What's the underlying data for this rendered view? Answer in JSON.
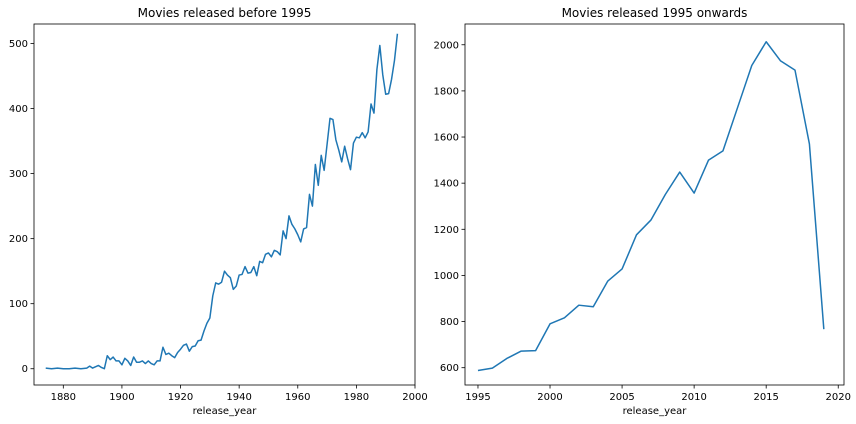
{
  "chart_data": [
    {
      "type": "line",
      "title": "Movies released before 1995",
      "xlabel": "release_year",
      "ylabel": "",
      "xlim": [
        1870,
        2000
      ],
      "ylim": [
        -25,
        530
      ],
      "xticks": [
        1880,
        1900,
        1920,
        1940,
        1960,
        1980,
        2000
      ],
      "yticks": [
        0,
        100,
        200,
        300,
        400,
        500
      ],
      "grid": false,
      "color": "#1f77b4",
      "series": [
        {
          "x": [
            1874,
            1876,
            1878,
            1880,
            1882,
            1884,
            1886,
            1888,
            1889,
            1890,
            1892,
            1893,
            1894,
            1895,
            1896,
            1897,
            1898,
            1899,
            1900,
            1901,
            1902,
            1903,
            1904,
            1905,
            1906,
            1907,
            1908,
            1909,
            1910,
            1911,
            1912,
            1913,
            1914,
            1915,
            1916,
            1917,
            1918,
            1919,
            1920,
            1921,
            1922,
            1923,
            1924,
            1925,
            1926,
            1927,
            1928,
            1929,
            1930,
            1931,
            1932,
            1933,
            1934,
            1935,
            1936,
            1937,
            1938,
            1939,
            1940,
            1941,
            1942,
            1943,
            1944,
            1945,
            1946,
            1947,
            1948,
            1949,
            1950,
            1951,
            1952,
            1953,
            1954,
            1955,
            1956,
            1957,
            1958,
            1959,
            1960,
            1961,
            1962,
            1963,
            1964,
            1965,
            1966,
            1967,
            1968,
            1969,
            1970,
            1971,
            1972,
            1973,
            1974,
            1975,
            1976,
            1977,
            1978,
            1979,
            1980,
            1981,
            1982,
            1983,
            1984,
            1985,
            1986,
            1987,
            1988,
            1989,
            1990,
            1991,
            1992,
            1993,
            1994
          ],
          "y": [
            1,
            0,
            1,
            0,
            0,
            1,
            0,
            1,
            4,
            1,
            5,
            2,
            0,
            20,
            14,
            18,
            12,
            12,
            6,
            16,
            12,
            5,
            18,
            10,
            10,
            12,
            8,
            12,
            8,
            6,
            12,
            12,
            33,
            22,
            24,
            20,
            17,
            25,
            30,
            36,
            38,
            27,
            34,
            35,
            43,
            44,
            58,
            70,
            78,
            112,
            132,
            130,
            133,
            150,
            144,
            140,
            122,
            127,
            144,
            145,
            157,
            147,
            148,
            157,
            143,
            165,
            163,
            176,
            178,
            172,
            182,
            180,
            175,
            212,
            200,
            235,
            222,
            215,
            206,
            195,
            215,
            217,
            268,
            250,
            314,
            282,
            328,
            305,
            345,
            385,
            383,
            352,
            336,
            318,
            342,
            323,
            306,
            347,
            356,
            355,
            363,
            355,
            364,
            407,
            393,
            460,
            497,
            452,
            422,
            423,
            445,
            474,
            515
          ]
        }
      ]
    },
    {
      "type": "line",
      "title": "Movies released 1995 onwards",
      "xlabel": "release_year",
      "ylabel": "",
      "xlim": [
        1994.1,
        2020.4
      ],
      "ylim": [
        525,
        2090
      ],
      "xticks": [
        1995,
        2000,
        2005,
        2010,
        2015,
        2020
      ],
      "yticks": [
        600,
        800,
        1000,
        1200,
        1400,
        1600,
        1800,
        2000
      ],
      "grid": false,
      "color": "#1f77b4",
      "series": [
        {
          "x": [
            1995,
            1996,
            1997,
            1998,
            1999,
            2000,
            2001,
            2002,
            2003,
            2004,
            2005,
            2006,
            2007,
            2008,
            2009,
            2010,
            2011,
            2012,
            2013,
            2014,
            2015,
            2016,
            2017,
            2018,
            2019
          ],
          "y": [
            588,
            598,
            640,
            672,
            674,
            790,
            816,
            871,
            864,
            975,
            1028,
            1176,
            1240,
            1351,
            1448,
            1357,
            1500,
            1540,
            1725,
            1910,
            2013,
            1930,
            1890,
            1570,
            767
          ]
        }
      ]
    }
  ]
}
